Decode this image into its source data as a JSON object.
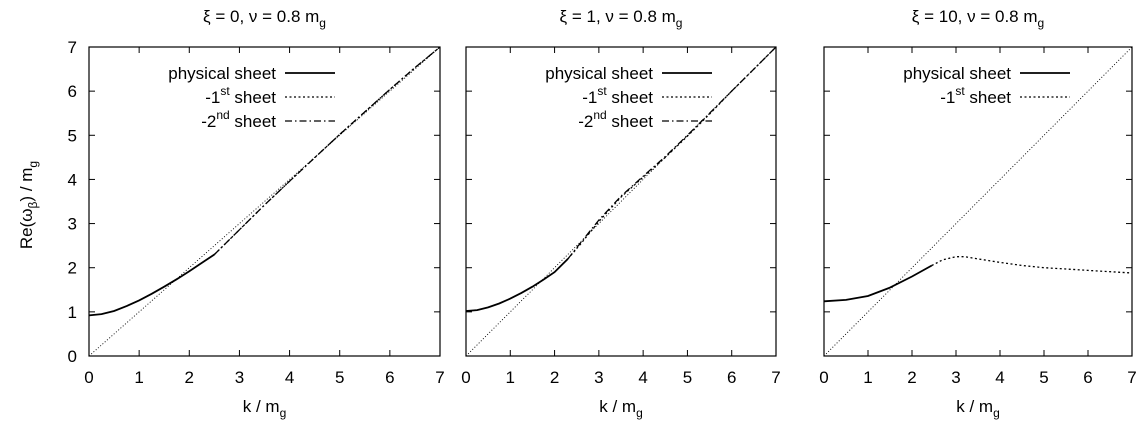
{
  "ylabel_main": "Re(ω",
  "ylabel_sub": "β",
  "ylabel_tail": ") / m",
  "ylabel_tail_sub": "g",
  "chart_data": [
    {
      "type": "line",
      "title_main": "ξ = 0, ν = 0.8 m",
      "title_sub": "g",
      "xlabel_main": "k / m",
      "xlabel_sub": "g",
      "xlim": [
        0,
        7
      ],
      "ylim": [
        0,
        7
      ],
      "xticks": [
        "0",
        "1",
        "2",
        "3",
        "4",
        "5",
        "6",
        "7"
      ],
      "yticks": [
        "0",
        "1",
        "2",
        "3",
        "4",
        "5",
        "6",
        "7"
      ],
      "yticks_shown": true,
      "legend_position": "top-left",
      "legend": [
        {
          "pre": "physical sheet",
          "sup": "",
          "post": "",
          "style": "solid"
        },
        {
          "pre": "-1",
          "sup": "st",
          "post": " sheet",
          "style": "dotted"
        },
        {
          "pre": "-2",
          "sup": "nd",
          "post": " sheet",
          "style": "dashdot"
        }
      ],
      "reference_line": {
        "x": [
          0,
          7
        ],
        "y": [
          0,
          7
        ],
        "style": "thin-dotted"
      },
      "series": [
        {
          "name": "physical sheet",
          "style": "solid",
          "x": [
            0,
            0.25,
            0.5,
            0.75,
            1.0,
            1.25,
            1.5,
            1.75,
            2.0,
            2.25,
            2.5
          ],
          "y": [
            0.92,
            0.95,
            1.02,
            1.13,
            1.26,
            1.41,
            1.57,
            1.74,
            1.92,
            2.11,
            2.3
          ]
        },
        {
          "name": "-1st sheet",
          "style": "dotted",
          "x": [
            2.5,
            3,
            3.5,
            4,
            4.5,
            5,
            5.5,
            6,
            6.5,
            7
          ],
          "y": [
            2.3,
            2.86,
            3.42,
            3.96,
            4.49,
            5.02,
            5.53,
            6.04,
            6.53,
            7.0
          ]
        },
        {
          "name": "-2nd sheet",
          "style": "dashdot",
          "x": [
            2.5,
            3,
            3.5,
            4,
            4.5,
            5,
            5.5,
            6,
            6.5,
            7
          ],
          "y": [
            2.3,
            2.86,
            3.42,
            3.96,
            4.49,
            5.02,
            5.53,
            6.04,
            6.53,
            7.0
          ]
        }
      ]
    },
    {
      "type": "line",
      "title_main": "ξ = 1, ν = 0.8 m",
      "title_sub": "g",
      "xlabel_main": "k / m",
      "xlabel_sub": "g",
      "xlim": [
        0,
        7
      ],
      "ylim": [
        0,
        7
      ],
      "xticks": [
        "0",
        "1",
        "2",
        "3",
        "4",
        "5",
        "6",
        "7"
      ],
      "yticks": [],
      "yticks_shown": false,
      "legend_position": "top-left",
      "legend": [
        {
          "pre": "physical sheet",
          "sup": "",
          "post": "",
          "style": "solid"
        },
        {
          "pre": "-1",
          "sup": "st",
          "post": " sheet",
          "style": "dotted"
        },
        {
          "pre": "-2",
          "sup": "nd",
          "post": " sheet",
          "style": "dashdot"
        }
      ],
      "reference_line": {
        "x": [
          0,
          7
        ],
        "y": [
          0,
          7
        ],
        "style": "thin-dotted"
      },
      "series": [
        {
          "name": "physical sheet",
          "style": "solid",
          "x": [
            0,
            0.25,
            0.5,
            0.75,
            1.0,
            1.25,
            1.5,
            1.75,
            2.0,
            2.3
          ],
          "y": [
            1.02,
            1.04,
            1.1,
            1.19,
            1.3,
            1.43,
            1.57,
            1.73,
            1.9,
            2.2
          ]
        },
        {
          "name": "-1st sheet",
          "style": "dotted",
          "x": [
            2.3,
            2.6,
            3,
            3.5,
            4,
            4.5,
            5,
            5.5,
            6,
            6.5,
            7
          ],
          "y": [
            2.2,
            2.55,
            3.05,
            3.6,
            4.05,
            4.5,
            4.98,
            5.48,
            6.0,
            6.5,
            7.0
          ]
        },
        {
          "name": "-2nd sheet",
          "style": "dashdot",
          "x": [
            2.3,
            2.6,
            3,
            3.5,
            4,
            4.5,
            5,
            5.5,
            6,
            6.5,
            7
          ],
          "y": [
            2.2,
            2.58,
            3.08,
            3.62,
            4.07,
            4.52,
            5.0,
            5.5,
            6.0,
            6.5,
            7.0
          ]
        }
      ]
    },
    {
      "type": "line",
      "title_main": "ξ = 10, ν = 0.8 m",
      "title_sub": "g",
      "xlabel_main": "k / m",
      "xlabel_sub": "g",
      "xlim": [
        0,
        7
      ],
      "ylim": [
        0,
        7
      ],
      "xticks": [
        "0",
        "1",
        "2",
        "3",
        "4",
        "5",
        "6",
        "7"
      ],
      "yticks": [],
      "yticks_shown": false,
      "legend_position": "top-left",
      "legend": [
        {
          "pre": "physical sheet",
          "sup": "",
          "post": "",
          "style": "solid"
        },
        {
          "pre": "-1",
          "sup": "st",
          "post": " sheet",
          "style": "dotted"
        }
      ],
      "reference_line": {
        "x": [
          0,
          7
        ],
        "y": [
          0,
          7
        ],
        "style": "thin-dotted"
      },
      "series": [
        {
          "name": "physical sheet",
          "style": "solid",
          "x": [
            0,
            0.5,
            1.0,
            1.5,
            2.0,
            2.45
          ],
          "y": [
            1.24,
            1.27,
            1.36,
            1.55,
            1.8,
            2.05
          ]
        },
        {
          "name": "-1st sheet",
          "style": "dotted",
          "x": [
            2.45,
            2.7,
            3.0,
            3.2,
            3.5,
            4.0,
            4.5,
            5.0,
            5.5,
            6.0,
            6.5,
            7.0
          ],
          "y": [
            2.05,
            2.18,
            2.25,
            2.25,
            2.2,
            2.12,
            2.05,
            2.0,
            1.97,
            1.94,
            1.91,
            1.88
          ]
        }
      ]
    }
  ]
}
